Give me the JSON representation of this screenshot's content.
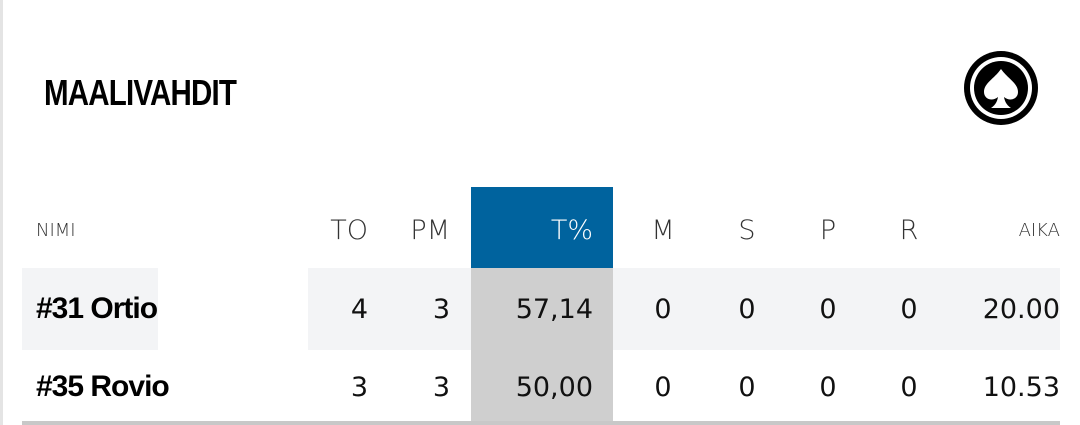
{
  "header": {
    "title": "MAALIVAHDIT"
  },
  "table": {
    "columns": [
      "NIMI",
      "TO",
      "PM",
      "T%",
      "M",
      "S",
      "P",
      "R",
      "AIKA"
    ],
    "rows": [
      [
        "#31 Ortio",
        "4",
        "3",
        "57,14",
        "0",
        "0",
        "0",
        "0",
        "20.00"
      ],
      [
        "#35 Rovio",
        "3",
        "3",
        "50,00",
        "0",
        "0",
        "0",
        "0",
        "10.53"
      ]
    ]
  }
}
